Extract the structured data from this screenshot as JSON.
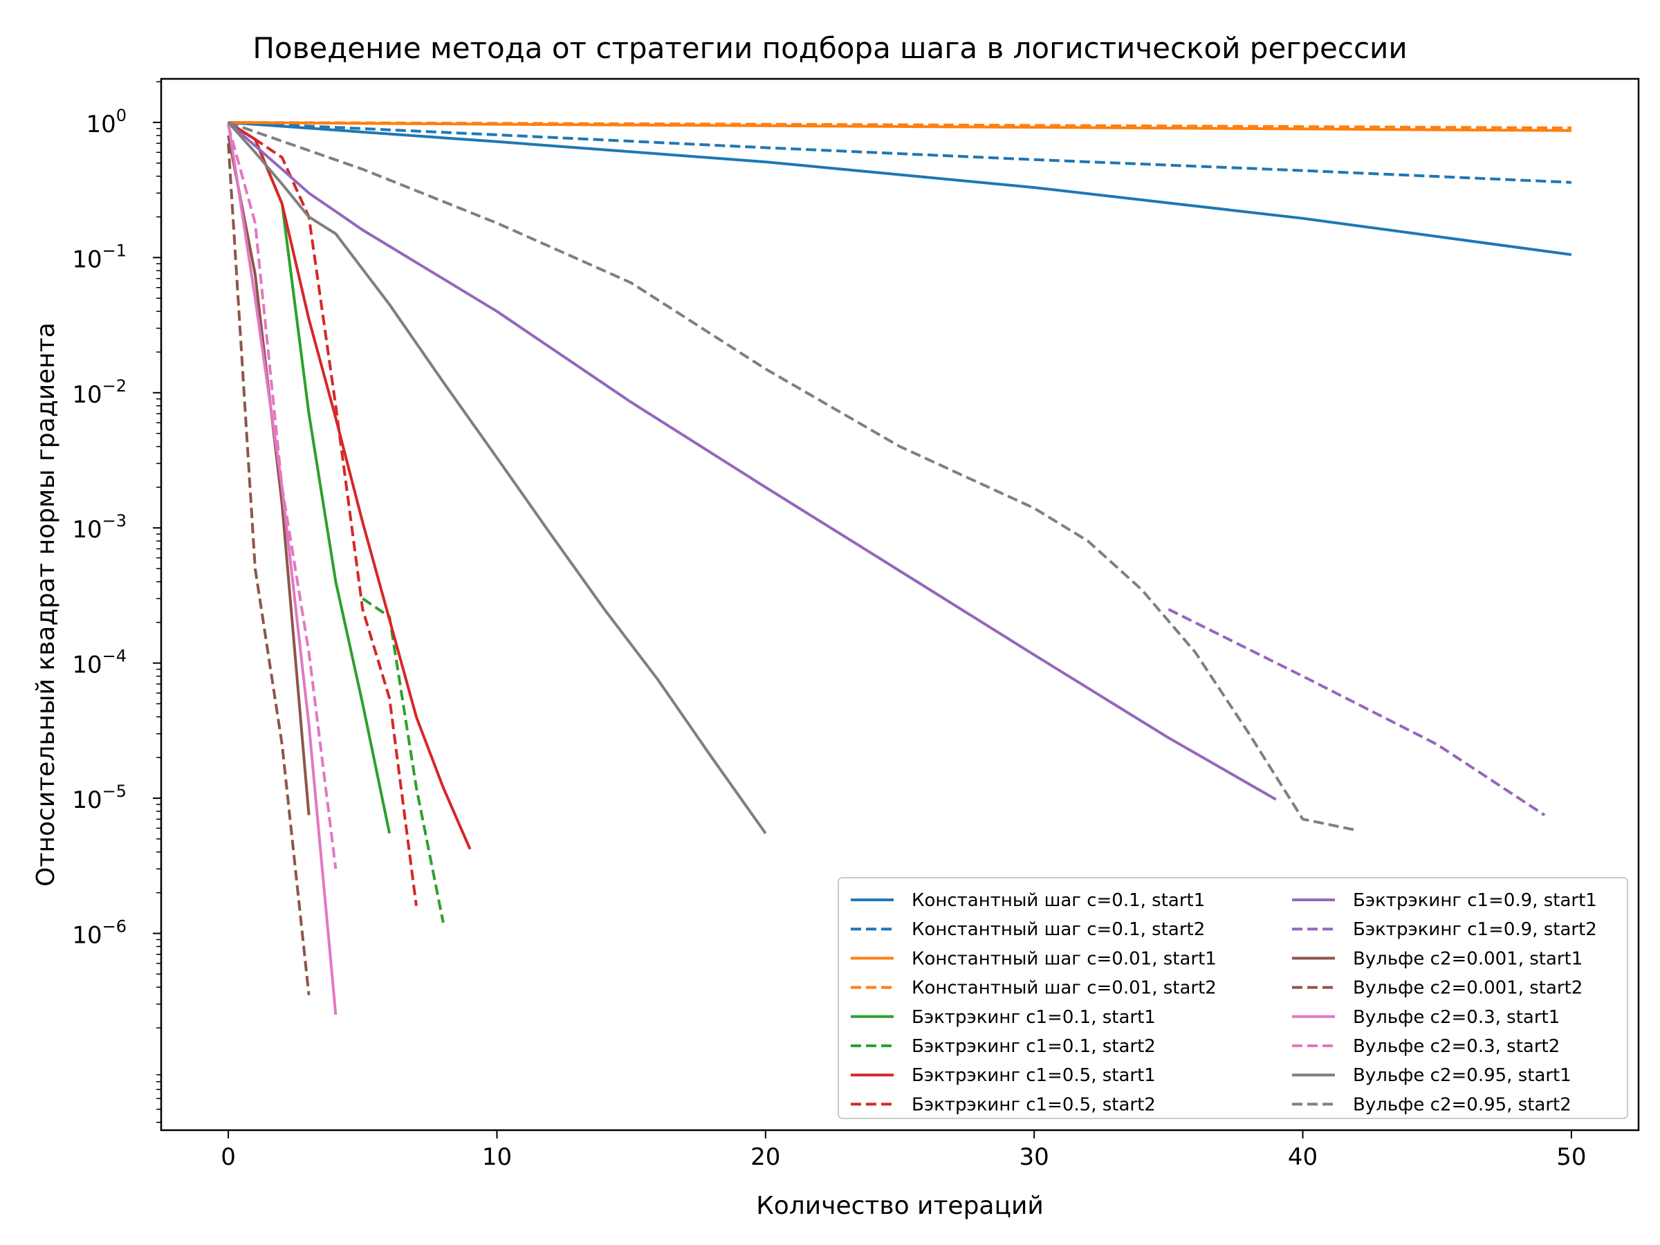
{
  "chart_data": {
    "type": "line",
    "title": "Поведение метода от стратегии подбора шага в логистической регрессии",
    "xlabel": "Количество итераций",
    "ylabel": "Относительный квадрат нормы градиента",
    "xlim": [
      -2.5,
      52.5
    ],
    "ylim": [
      3.5e-08,
      2.1
    ],
    "yscale": "log",
    "xticks": [
      0,
      10,
      20,
      30,
      40,
      50
    ],
    "ytick_exponents": [
      0,
      -1,
      -2,
      -3,
      -4,
      -5,
      -6
    ],
    "ytick_base": "10",
    "grid": false,
    "legend": {
      "position": "lower-right",
      "columns": 2
    },
    "series": [
      {
        "name": "Константный шаг c=0.1, start1",
        "color": "#1f77b4",
        "dash": false,
        "points": [
          [
            0,
            1
          ],
          [
            10,
            0.72
          ],
          [
            20,
            0.51
          ],
          [
            30,
            0.33
          ],
          [
            40,
            0.195
          ],
          [
            50,
            0.105
          ]
        ]
      },
      {
        "name": "Константный шаг c=0.1, start2",
        "color": "#1f77b4",
        "dash": true,
        "points": [
          [
            0,
            1
          ],
          [
            10,
            0.81
          ],
          [
            20,
            0.65
          ],
          [
            30,
            0.53
          ],
          [
            40,
            0.44
          ],
          [
            50,
            0.36
          ]
        ]
      },
      {
        "name": "Константный шаг c=0.01, start1",
        "color": "#ff7f0e",
        "dash": false,
        "points": [
          [
            0,
            1
          ],
          [
            10,
            0.97
          ],
          [
            20,
            0.945
          ],
          [
            30,
            0.92
          ],
          [
            40,
            0.895
          ],
          [
            50,
            0.87
          ]
        ]
      },
      {
        "name": "Константный шаг c=0.01, start2",
        "color": "#ff7f0e",
        "dash": true,
        "points": [
          [
            0,
            1
          ],
          [
            10,
            0.985
          ],
          [
            20,
            0.97
          ],
          [
            30,
            0.95
          ],
          [
            40,
            0.93
          ],
          [
            50,
            0.91
          ]
        ]
      },
      {
        "name": "Бэктрэкинг c1=0.1, start1",
        "color": "#2ca02c",
        "dash": false,
        "points": [
          [
            0,
            1
          ],
          [
            1,
            0.75
          ],
          [
            2,
            0.25
          ],
          [
            3,
            0.007
          ],
          [
            4,
            0.0004
          ],
          [
            5,
            5e-05
          ],
          [
            6,
            5.5e-06
          ]
        ]
      },
      {
        "name": "Бэктрэкинг c1=0.1, start2",
        "color": "#2ca02c",
        "dash": true,
        "points": [
          [
            5,
            0.0003
          ],
          [
            6,
            0.00022
          ],
          [
            7,
            1.2e-05
          ],
          [
            8,
            1.2e-06
          ]
        ]
      },
      {
        "name": "Бэктрэкинг c1=0.5, start1",
        "color": "#d62728",
        "dash": false,
        "points": [
          [
            0,
            1
          ],
          [
            1,
            0.75
          ],
          [
            2,
            0.25
          ],
          [
            3,
            0.035
          ],
          [
            4,
            0.0065
          ],
          [
            5,
            0.0011
          ],
          [
            6,
            0.00021
          ],
          [
            7,
            4e-05
          ],
          [
            8,
            1.2e-05
          ],
          [
            9,
            4.2e-06
          ]
        ]
      },
      {
        "name": "Бэктрэкинг c1=0.5, start2",
        "color": "#d62728",
        "dash": true,
        "points": [
          [
            0,
            1
          ],
          [
            1,
            0.75
          ],
          [
            2,
            0.55
          ],
          [
            3,
            0.2
          ],
          [
            4,
            0.008
          ],
          [
            5,
            0.00025
          ],
          [
            6,
            5.5e-05
          ],
          [
            7,
            1.6e-06
          ]
        ]
      },
      {
        "name": "Бэктрэкинг c1=0.9, start1",
        "color": "#9467bd",
        "dash": false,
        "points": [
          [
            0,
            1
          ],
          [
            2,
            0.45
          ],
          [
            3,
            0.3
          ],
          [
            5,
            0.16
          ],
          [
            10,
            0.04
          ],
          [
            15,
            0.0085
          ],
          [
            20,
            0.002
          ],
          [
            25,
            0.00048
          ],
          [
            30,
            0.000115
          ],
          [
            35,
            2.8e-05
          ],
          [
            39,
            9.8e-06
          ]
        ]
      },
      {
        "name": "Бэктрэкинг c1=0.9, start2",
        "color": "#9467bd",
        "dash": true,
        "points": [
          [
            35,
            0.00025
          ],
          [
            40,
            8e-05
          ],
          [
            45,
            2.5e-05
          ],
          [
            49,
            7.5e-06
          ]
        ]
      },
      {
        "name": "Вульфе c2=0.001, start1",
        "color": "#8c564b",
        "dash": false,
        "points": [
          [
            0,
            0.8
          ],
          [
            1,
            0.075
          ],
          [
            2,
            0.0015
          ],
          [
            3,
            7.5e-06
          ]
        ]
      },
      {
        "name": "Вульфе c2=0.001, start2",
        "color": "#8c564b",
        "dash": true,
        "points": [
          [
            0,
            0.7
          ],
          [
            1,
            0.0005
          ],
          [
            2,
            2.5e-05
          ],
          [
            3,
            3.5e-07
          ]
        ]
      },
      {
        "name": "Вульфе c2=0.3, start1",
        "color": "#e377c2",
        "dash": false,
        "points": [
          [
            0,
            1
          ],
          [
            1,
            0.05
          ],
          [
            2,
            0.002
          ],
          [
            3,
            3.5e-05
          ],
          [
            4,
            2.5e-07
          ]
        ]
      },
      {
        "name": "Вульфе c2=0.3, start2",
        "color": "#e377c2",
        "dash": true,
        "points": [
          [
            0,
            0.95
          ],
          [
            1,
            0.18
          ],
          [
            2,
            0.002
          ],
          [
            3,
            0.00012
          ],
          [
            4,
            3e-06
          ]
        ]
      },
      {
        "name": "Вульфе c2=0.95, start1",
        "color": "#7f7f7f",
        "dash": false,
        "points": [
          [
            0,
            1
          ],
          [
            1,
            0.6
          ],
          [
            2,
            0.35
          ],
          [
            3,
            0.2
          ],
          [
            4,
            0.15
          ],
          [
            6,
            0.045
          ],
          [
            8,
            0.012
          ],
          [
            10,
            0.0033
          ],
          [
            12,
            0.0009
          ],
          [
            14,
            0.00025
          ],
          [
            16,
            7.5e-05
          ],
          [
            18,
            2e-05
          ],
          [
            20,
            5.5e-06
          ]
        ]
      },
      {
        "name": "Вульфе c2=0.95, start2",
        "color": "#7f7f7f",
        "dash": true,
        "points": [
          [
            0,
            1
          ],
          [
            5,
            0.45
          ],
          [
            10,
            0.18
          ],
          [
            15,
            0.065
          ],
          [
            20,
            0.015
          ],
          [
            25,
            0.004
          ],
          [
            30,
            0.0014
          ],
          [
            32,
            0.0008
          ],
          [
            34,
            0.00035
          ],
          [
            36,
            0.00012
          ],
          [
            38,
            3e-05
          ],
          [
            40,
            7e-06
          ],
          [
            42,
            5.8e-06
          ]
        ]
      }
    ]
  }
}
